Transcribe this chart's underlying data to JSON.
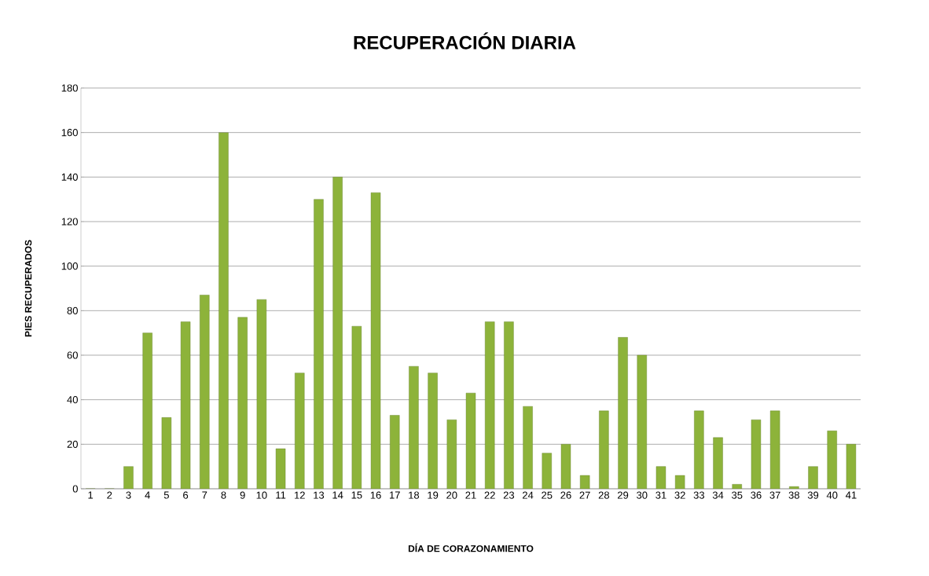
{
  "chart_data": {
    "type": "bar",
    "title": "RECUPERACIÓN DIARIA",
    "xlabel": "DÍA DE CORAZONAMIENTO",
    "ylabel": "PIES RECUPERADOS",
    "categories": [
      "1",
      "2",
      "3",
      "4",
      "5",
      "6",
      "7",
      "8",
      "9",
      "10",
      "11",
      "12",
      "13",
      "14",
      "15",
      "16",
      "17",
      "18",
      "19",
      "20",
      "21",
      "22",
      "23",
      "24",
      "25",
      "26",
      "27",
      "28",
      "29",
      "30",
      "31",
      "32",
      "33",
      "34",
      "35",
      "36",
      "37",
      "38",
      "39",
      "40",
      "41"
    ],
    "values": [
      0,
      0,
      10,
      70,
      32,
      75,
      87,
      160,
      77,
      85,
      18,
      52,
      130,
      140,
      73,
      133,
      33,
      55,
      52,
      31,
      43,
      75,
      75,
      37,
      16,
      20,
      6,
      35,
      68,
      60,
      10,
      6,
      35,
      23,
      2,
      31,
      35,
      1,
      10,
      26,
      20
    ],
    "color": "#8db33a",
    "ylim": [
      0,
      180
    ],
    "yticks": [
      0,
      20,
      40,
      60,
      80,
      100,
      120,
      140,
      160,
      180
    ],
    "grid": "y"
  }
}
